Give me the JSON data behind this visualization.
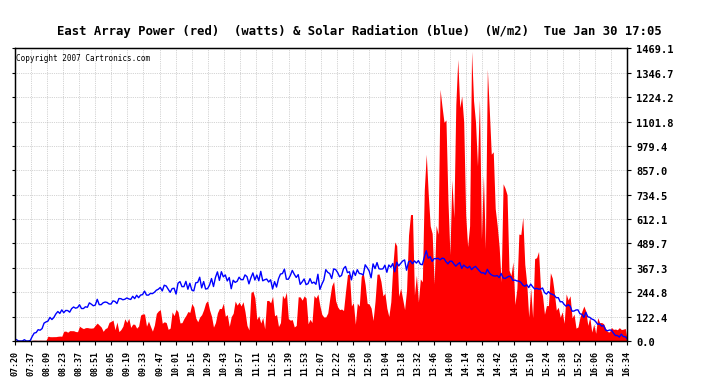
{
  "title": "East Array Power (red)  (watts) & Solar Radiation (blue)  (W/m2)  Tue Jan 30 17:05",
  "copyright": "Copyright 2007 Cartronics.com",
  "y_ticks": [
    0.0,
    122.4,
    244.8,
    367.3,
    489.7,
    612.1,
    734.5,
    857.0,
    979.4,
    1101.8,
    1224.2,
    1346.7,
    1469.1
  ],
  "y_max": 1469.1,
  "x_labels": [
    "07:20",
    "07:37",
    "08:09",
    "08:23",
    "08:37",
    "08:51",
    "09:05",
    "09:19",
    "09:33",
    "09:47",
    "10:01",
    "10:15",
    "10:29",
    "10:43",
    "10:57",
    "11:11",
    "11:25",
    "11:39",
    "11:53",
    "12:07",
    "12:22",
    "12:36",
    "12:50",
    "13:04",
    "13:18",
    "13:32",
    "13:46",
    "14:00",
    "14:14",
    "14:28",
    "14:42",
    "14:56",
    "15:10",
    "15:24",
    "15:38",
    "15:52",
    "16:06",
    "16:20",
    "16:34"
  ],
  "bg_color": "#ffffff",
  "grid_color": "#888888",
  "red_color": "#ff0000",
  "blue_color": "#0000ff",
  "n_pts": 39,
  "blue_data": [
    5,
    18,
    95,
    145,
    170,
    185,
    195,
    215,
    235,
    255,
    265,
    275,
    300,
    310,
    305,
    320,
    295,
    340,
    295,
    310,
    355,
    345,
    370,
    375,
    390,
    385,
    415,
    395,
    375,
    355,
    330,
    305,
    275,
    250,
    195,
    145,
    95,
    45,
    8
  ],
  "red_data": [
    2,
    4,
    25,
    55,
    75,
    95,
    105,
    125,
    145,
    160,
    170,
    195,
    215,
    235,
    245,
    130,
    260,
    155,
    265,
    200,
    280,
    260,
    310,
    290,
    380,
    440,
    900,
    1350,
    1469,
    1400,
    950,
    550,
    380,
    280,
    230,
    180,
    130,
    70,
    4
  ],
  "red_data_high": [
    2,
    4,
    25,
    55,
    75,
    95,
    105,
    125,
    145,
    160,
    170,
    195,
    215,
    235,
    245,
    260,
    260,
    290,
    265,
    280,
    310,
    350,
    380,
    420,
    600,
    700,
    1200,
    1469,
    1469,
    1469,
    1200,
    800,
    550,
    380,
    280,
    200,
    140,
    80,
    4
  ]
}
